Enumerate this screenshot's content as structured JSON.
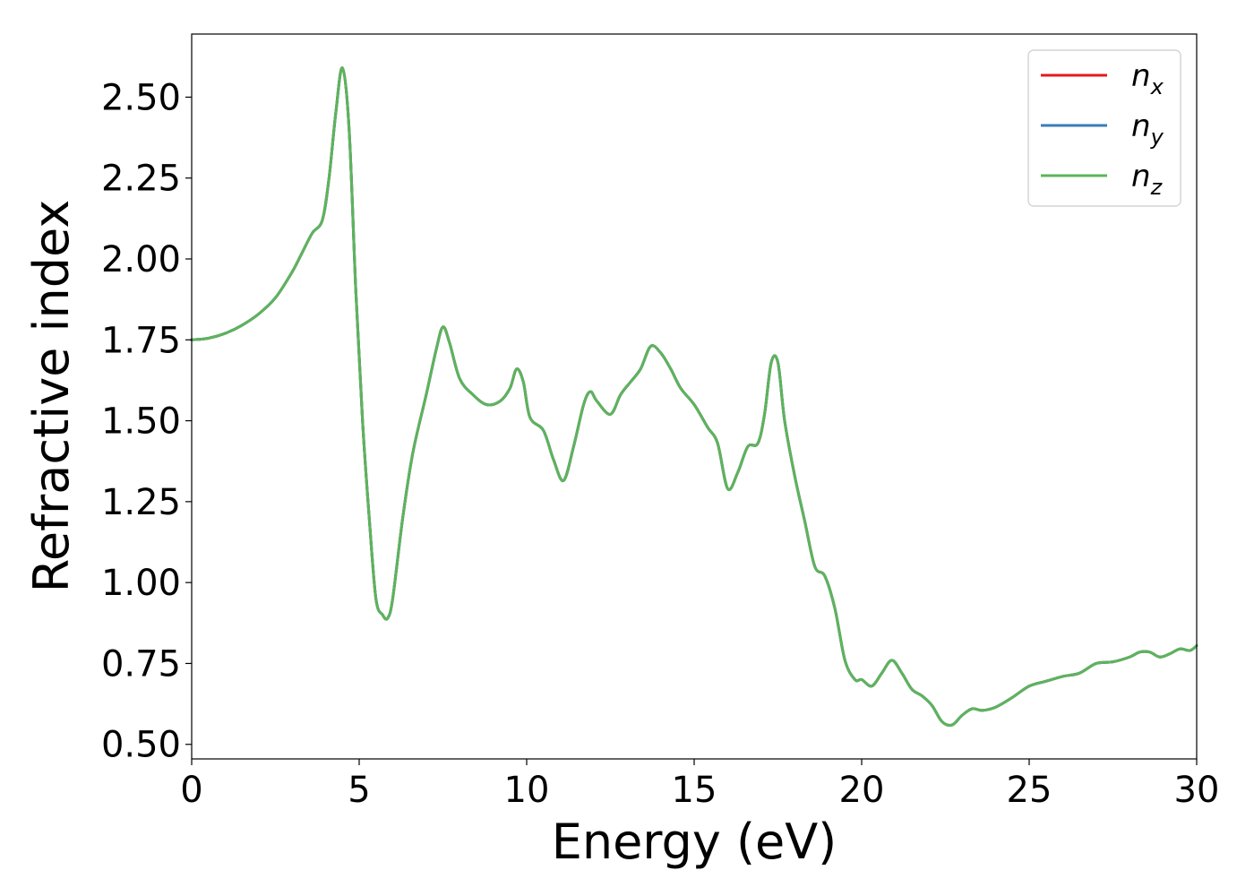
{
  "chart_data": {
    "type": "line",
    "xlabel": "Energy (eV)",
    "ylabel": "Refractive index",
    "xlim": [
      0,
      30
    ],
    "ylim": [
      0.455,
      2.695
    ],
    "x_ticks": [
      0,
      5,
      10,
      15,
      20,
      25,
      30
    ],
    "x_tick_labels": [
      "0",
      "5",
      "10",
      "15",
      "20",
      "25",
      "30"
    ],
    "y_ticks": [
      0.5,
      0.75,
      1.0,
      1.25,
      1.5,
      1.75,
      2.0,
      2.25,
      2.5
    ],
    "y_tick_labels": [
      "0.50",
      "0.75",
      "1.00",
      "1.25",
      "1.50",
      "1.75",
      "2.00",
      "2.25",
      "2.50"
    ],
    "grid": false,
    "legend_position": "top-right",
    "x": [
      0,
      0.5,
      1,
      1.5,
      2,
      2.5,
      3,
      3.3,
      3.6,
      3.9,
      4.1,
      4.3,
      4.5,
      4.7,
      4.9,
      5.1,
      5.3,
      5.5,
      5.7,
      5.85,
      6.0,
      6.3,
      6.6,
      7.0,
      7.3,
      7.5,
      7.7,
      8.0,
      8.4,
      8.8,
      9.2,
      9.5,
      9.7,
      9.9,
      10.1,
      10.5,
      10.8,
      11.1,
      11.4,
      11.7,
      11.9,
      12.1,
      12.5,
      12.8,
      13.1,
      13.4,
      13.7,
      14.0,
      14.3,
      14.6,
      15.0,
      15.4,
      15.7,
      16.0,
      16.3,
      16.6,
      16.9,
      17.1,
      17.3,
      17.5,
      17.7,
      18.0,
      18.3,
      18.6,
      18.9,
      19.2,
      19.5,
      19.8,
      20.0,
      20.3,
      20.6,
      20.9,
      21.2,
      21.5,
      21.8,
      22.1,
      22.4,
      22.7,
      23.0,
      23.3,
      23.6,
      24.0,
      24.5,
      25.0,
      25.5,
      26.0,
      26.5,
      27.0,
      27.5,
      28.0,
      28.3,
      28.6,
      28.9,
      29.2,
      29.5,
      29.8,
      30.0
    ],
    "series": [
      {
        "name": "n_x",
        "label_main": "n",
        "label_sub": "x",
        "color": "#e41a1c",
        "values": [
          1.75,
          1.755,
          1.77,
          1.795,
          1.83,
          1.88,
          1.96,
          2.02,
          2.08,
          2.12,
          2.25,
          2.45,
          2.59,
          2.4,
          1.9,
          1.5,
          1.2,
          0.95,
          0.9,
          0.89,
          0.95,
          1.2,
          1.4,
          1.58,
          1.72,
          1.79,
          1.74,
          1.63,
          1.58,
          1.55,
          1.56,
          1.6,
          1.66,
          1.62,
          1.51,
          1.47,
          1.38,
          1.315,
          1.42,
          1.55,
          1.59,
          1.56,
          1.52,
          1.58,
          1.62,
          1.66,
          1.73,
          1.71,
          1.66,
          1.6,
          1.55,
          1.48,
          1.43,
          1.29,
          1.34,
          1.42,
          1.43,
          1.52,
          1.68,
          1.68,
          1.5,
          1.33,
          1.19,
          1.05,
          1.02,
          0.92,
          0.76,
          0.7,
          0.7,
          0.68,
          0.72,
          0.76,
          0.72,
          0.67,
          0.65,
          0.62,
          0.57,
          0.56,
          0.59,
          0.61,
          0.605,
          0.615,
          0.645,
          0.68,
          0.695,
          0.71,
          0.72,
          0.75,
          0.755,
          0.77,
          0.785,
          0.785,
          0.77,
          0.78,
          0.795,
          0.79,
          0.805
        ]
      },
      {
        "name": "n_y",
        "label_main": "n",
        "label_sub": "y",
        "color": "#377eb8",
        "values": [
          1.75,
          1.755,
          1.77,
          1.795,
          1.83,
          1.88,
          1.96,
          2.02,
          2.08,
          2.12,
          2.25,
          2.45,
          2.59,
          2.4,
          1.9,
          1.5,
          1.2,
          0.95,
          0.9,
          0.89,
          0.95,
          1.2,
          1.4,
          1.58,
          1.72,
          1.79,
          1.74,
          1.63,
          1.58,
          1.55,
          1.56,
          1.6,
          1.66,
          1.62,
          1.51,
          1.47,
          1.38,
          1.315,
          1.42,
          1.55,
          1.59,
          1.56,
          1.52,
          1.58,
          1.62,
          1.66,
          1.73,
          1.71,
          1.66,
          1.6,
          1.55,
          1.48,
          1.43,
          1.29,
          1.34,
          1.42,
          1.43,
          1.52,
          1.68,
          1.68,
          1.5,
          1.33,
          1.19,
          1.05,
          1.02,
          0.92,
          0.76,
          0.7,
          0.7,
          0.68,
          0.72,
          0.76,
          0.72,
          0.67,
          0.65,
          0.62,
          0.57,
          0.56,
          0.59,
          0.61,
          0.605,
          0.615,
          0.645,
          0.68,
          0.695,
          0.71,
          0.72,
          0.75,
          0.755,
          0.77,
          0.785,
          0.785,
          0.77,
          0.78,
          0.795,
          0.79,
          0.805
        ]
      },
      {
        "name": "n_z",
        "label_main": "n",
        "label_sub": "z",
        "color": "#5cb45c",
        "values": [
          1.75,
          1.755,
          1.77,
          1.795,
          1.83,
          1.88,
          1.96,
          2.02,
          2.08,
          2.12,
          2.25,
          2.45,
          2.59,
          2.4,
          1.9,
          1.5,
          1.2,
          0.95,
          0.9,
          0.89,
          0.95,
          1.2,
          1.4,
          1.58,
          1.72,
          1.79,
          1.74,
          1.63,
          1.58,
          1.55,
          1.56,
          1.6,
          1.66,
          1.62,
          1.51,
          1.47,
          1.38,
          1.315,
          1.42,
          1.55,
          1.59,
          1.56,
          1.52,
          1.58,
          1.62,
          1.66,
          1.73,
          1.71,
          1.66,
          1.6,
          1.55,
          1.48,
          1.43,
          1.29,
          1.34,
          1.42,
          1.43,
          1.52,
          1.68,
          1.68,
          1.5,
          1.33,
          1.19,
          1.05,
          1.02,
          0.92,
          0.76,
          0.7,
          0.7,
          0.68,
          0.72,
          0.76,
          0.72,
          0.67,
          0.65,
          0.62,
          0.57,
          0.56,
          0.59,
          0.61,
          0.605,
          0.615,
          0.645,
          0.68,
          0.695,
          0.71,
          0.72,
          0.75,
          0.755,
          0.77,
          0.785,
          0.785,
          0.77,
          0.78,
          0.795,
          0.79,
          0.805
        ]
      }
    ]
  }
}
